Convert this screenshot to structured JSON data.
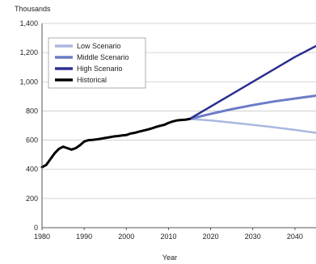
{
  "chart_data": {
    "type": "line",
    "ylabel": "Thousands",
    "xlabel": "Year",
    "xlim": [
      1980,
      2045
    ],
    "ylim": [
      0,
      1400
    ],
    "x_ticks": [
      "1980",
      "1990",
      "2000",
      "2010",
      "2020",
      "2030",
      "2040"
    ],
    "y_ticks": [
      "0",
      "200",
      "400",
      "600",
      "800",
      "1,000",
      "1,200",
      "1,400"
    ],
    "grid": true,
    "legend_position": "top-left",
    "series": [
      {
        "name": "Low Scenario",
        "color": "#aab8e0",
        "width": 2.5,
        "x": [
          2015,
          2020,
          2025,
          2030,
          2035,
          2040,
          2045
        ],
        "y": [
          745,
          735,
          720,
          705,
          688,
          670,
          650
        ]
      },
      {
        "name": "Middle Scenario",
        "color": "#6b7cc7",
        "width": 3,
        "x": [
          2015,
          2020,
          2025,
          2030,
          2035,
          2040,
          2045
        ],
        "y": [
          745,
          780,
          812,
          840,
          865,
          885,
          905
        ]
      },
      {
        "name": "High Scenario",
        "color": "#2b2f8f",
        "width": 2.5,
        "x": [
          2015,
          2020,
          2025,
          2030,
          2035,
          2040,
          2045
        ],
        "y": [
          745,
          830,
          915,
          1000,
          1085,
          1170,
          1245
        ]
      },
      {
        "name": "Historical",
        "color": "#000000",
        "width": 3,
        "x": [
          1980,
          1981,
          1982,
          1983,
          1984,
          1985,
          1986,
          1987,
          1988,
          1989,
          1990,
          1991,
          1992,
          1993,
          1994,
          1995,
          1996,
          1997,
          1998,
          1999,
          2000,
          2001,
          2002,
          2003,
          2004,
          2005,
          2006,
          2007,
          2008,
          2009,
          2010,
          2011,
          2012,
          2013,
          2014,
          2015
        ],
        "y": [
          415,
          430,
          470,
          510,
          540,
          555,
          545,
          535,
          545,
          565,
          590,
          600,
          602,
          605,
          610,
          615,
          620,
          625,
          628,
          632,
          635,
          645,
          650,
          658,
          665,
          672,
          680,
          690,
          698,
          705,
          718,
          728,
          735,
          738,
          740,
          745
        ]
      }
    ]
  }
}
